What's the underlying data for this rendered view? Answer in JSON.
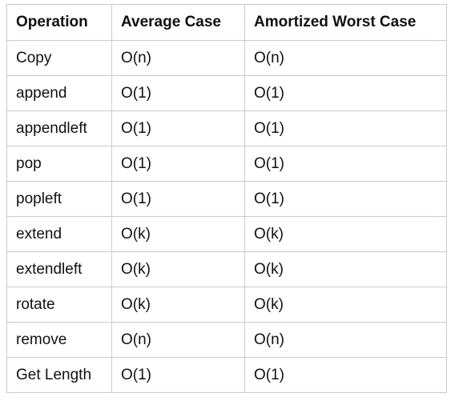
{
  "table": {
    "headers": [
      "Operation",
      "Average Case",
      "Amortized Worst Case"
    ],
    "rows": [
      [
        "Copy",
        "O(n)",
        "O(n)"
      ],
      [
        "append",
        "O(1)",
        "O(1)"
      ],
      [
        "appendleft",
        "O(1)",
        "O(1)"
      ],
      [
        "pop",
        "O(1)",
        "O(1)"
      ],
      [
        "popleft",
        "O(1)",
        "O(1)"
      ],
      [
        "extend",
        "O(k)",
        "O(k)"
      ],
      [
        "extendleft",
        "O(k)",
        "O(k)"
      ],
      [
        "rotate",
        "O(k)",
        "O(k)"
      ],
      [
        "remove",
        "O(n)",
        "O(n)"
      ],
      [
        "Get Length",
        "O(1)",
        "O(1)"
      ]
    ]
  },
  "colors": {
    "border": "#c9c9d6",
    "text": "#111111",
    "background": "#ffffff"
  }
}
